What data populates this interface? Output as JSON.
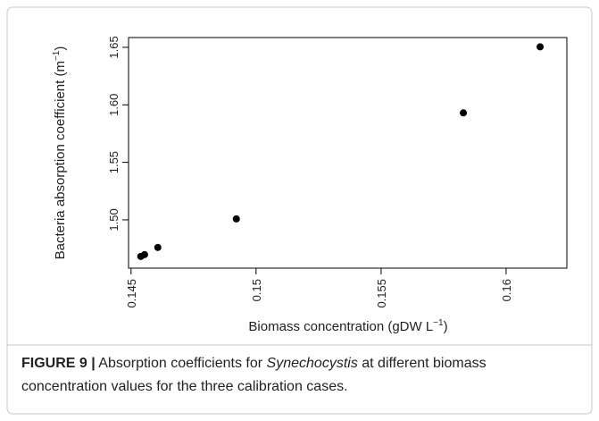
{
  "chart_data": {
    "type": "scatter",
    "x_label": {
      "text": "Biomass concentration (gDW L",
      "sup": "−1",
      "end": ")"
    },
    "y_label": {
      "text": "Bacteria absorption coefficient (m",
      "sup": "−1",
      "end": ")"
    },
    "x": [
      0.14539,
      0.14554,
      0.14607,
      0.14921,
      0.15829,
      0.16136
    ],
    "values": [
      1.4682,
      1.4698,
      1.476,
      1.5008,
      1.593,
      1.6504
    ],
    "color": "#000000",
    "xlim": [
      0.1449,
      0.16243
    ],
    "xticks": [
      0.145,
      0.15,
      0.155,
      0.16
    ],
    "ylim": [
      1.458,
      1.6585
    ],
    "yticks": [
      {
        "value": 1.5,
        "label": "1.50"
      },
      {
        "value": 1.55,
        "label": "1.55"
      },
      {
        "value": 1.6,
        "label": "1.60"
      },
      {
        "value": 1.65,
        "label": "1.65"
      }
    ]
  },
  "caption": {
    "label": "FIGURE 9 |",
    "before": "Absorption coefficients for",
    "italic": "Synechocystis",
    "after": "at different biomass concentration values for the three calibration cases."
  }
}
